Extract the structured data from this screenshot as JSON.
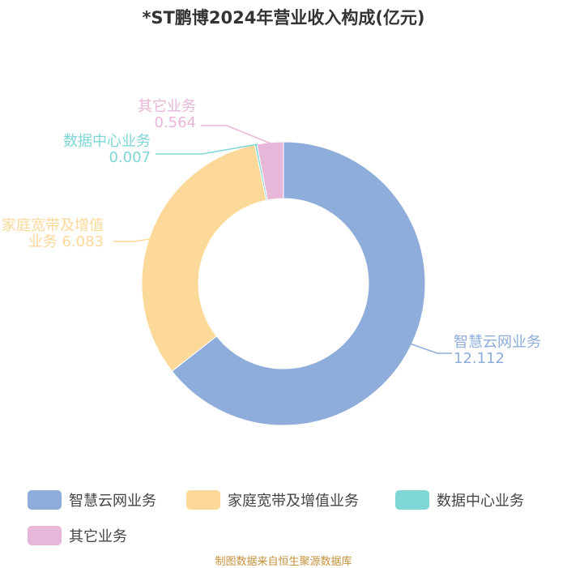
{
  "chart_data": {
    "type": "pie",
    "title": "*ST鹏博2024年营业收入构成(亿元)",
    "series": [
      {
        "name": "智慧云网业务",
        "value": 12.112,
        "label_lines": [
          "智慧云网业务",
          "12.112"
        ],
        "color": "#8eaddb"
      },
      {
        "name": "家庭宽带及增值业务",
        "value": 6.083,
        "label_lines": [
          "家庭宽带及增值",
          "业务 6.083"
        ],
        "color": "#fdd999"
      },
      {
        "name": "数据中心业务",
        "value": 0.007,
        "label_lines": [
          "数据中心业务",
          "0.007"
        ],
        "color": "#7fd6d6"
      },
      {
        "name": "其它业务",
        "value": 0.564,
        "label_lines": [
          "其它业务",
          "0.564"
        ],
        "color": "#e8b6d8"
      }
    ],
    "legend": [
      "智慧云网业务",
      "家庭宽带及增值业务",
      "数据中心业务",
      "其它业务"
    ],
    "legend_position": "bottom"
  },
  "source_note": "制图数据来自恒生聚源数据库"
}
